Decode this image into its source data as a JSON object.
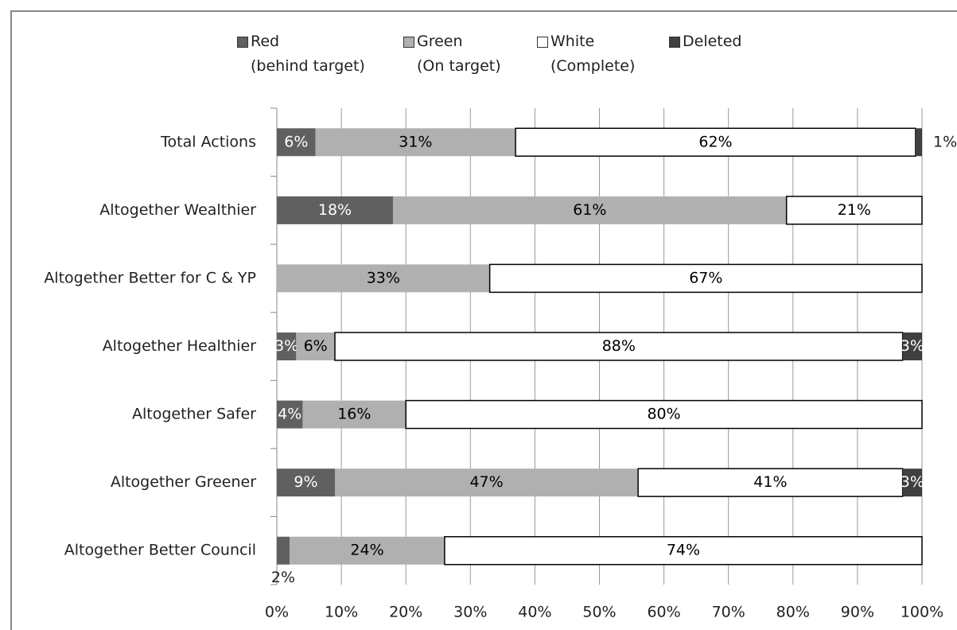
{
  "chart_data": {
    "type": "stacked_barh",
    "categories": [
      "Total Actions",
      "Altogether Wealthier",
      "Altogether Better for C & YP",
      "Altogether Healthier",
      "Altogether Safer",
      "Altogether Greener",
      "Altogether Better Council"
    ],
    "series": [
      {
        "name": "Red\n(behind target)",
        "color": "#606060",
        "label_color": "#ffffff",
        "values": [
          6,
          18,
          null,
          3,
          4,
          9,
          2
        ],
        "value_labels": [
          "6%",
          "18%",
          null,
          "3%",
          "4%",
          "9%",
          "2%"
        ]
      },
      {
        "name": "Green\n(On target)",
        "color": "#b0b0b0",
        "label_color": "#000000",
        "values": [
          31,
          61,
          33,
          6,
          16,
          47,
          24
        ],
        "value_labels": [
          "31%",
          "61%",
          "33%",
          "6%",
          "16%",
          "47%",
          "24%"
        ]
      },
      {
        "name": "White\n(Complete)",
        "color": "#ffffff",
        "label_color": "#000000",
        "values": [
          62,
          21,
          67,
          88,
          80,
          41,
          74
        ],
        "value_labels": [
          "62%",
          "21%",
          "67%",
          "88%",
          "80%",
          "41%",
          "74%"
        ]
      },
      {
        "name": "Deleted",
        "color": "#404040",
        "label_color": "#ffffff",
        "values": [
          1,
          null,
          null,
          3,
          null,
          3,
          null
        ],
        "value_labels": [
          "1%",
          null,
          null,
          "3%",
          null,
          "3%",
          null
        ]
      }
    ],
    "xlim": [
      0,
      100
    ],
    "xticks": [
      {
        "value": 0,
        "label": "0%"
      },
      {
        "value": 10,
        "label": "10%"
      },
      {
        "value": 20,
        "label": "20%"
      },
      {
        "value": 30,
        "label": "30%"
      },
      {
        "value": 40,
        "label": "40%"
      },
      {
        "value": 50,
        "label": "50%"
      },
      {
        "value": 60,
        "label": "60%"
      },
      {
        "value": 70,
        "label": "70%"
      },
      {
        "value": 80,
        "label": "80%"
      },
      {
        "value": 90,
        "label": "90%"
      },
      {
        "value": 100,
        "label": "100%"
      }
    ],
    "grid": true,
    "legend": "top"
  }
}
